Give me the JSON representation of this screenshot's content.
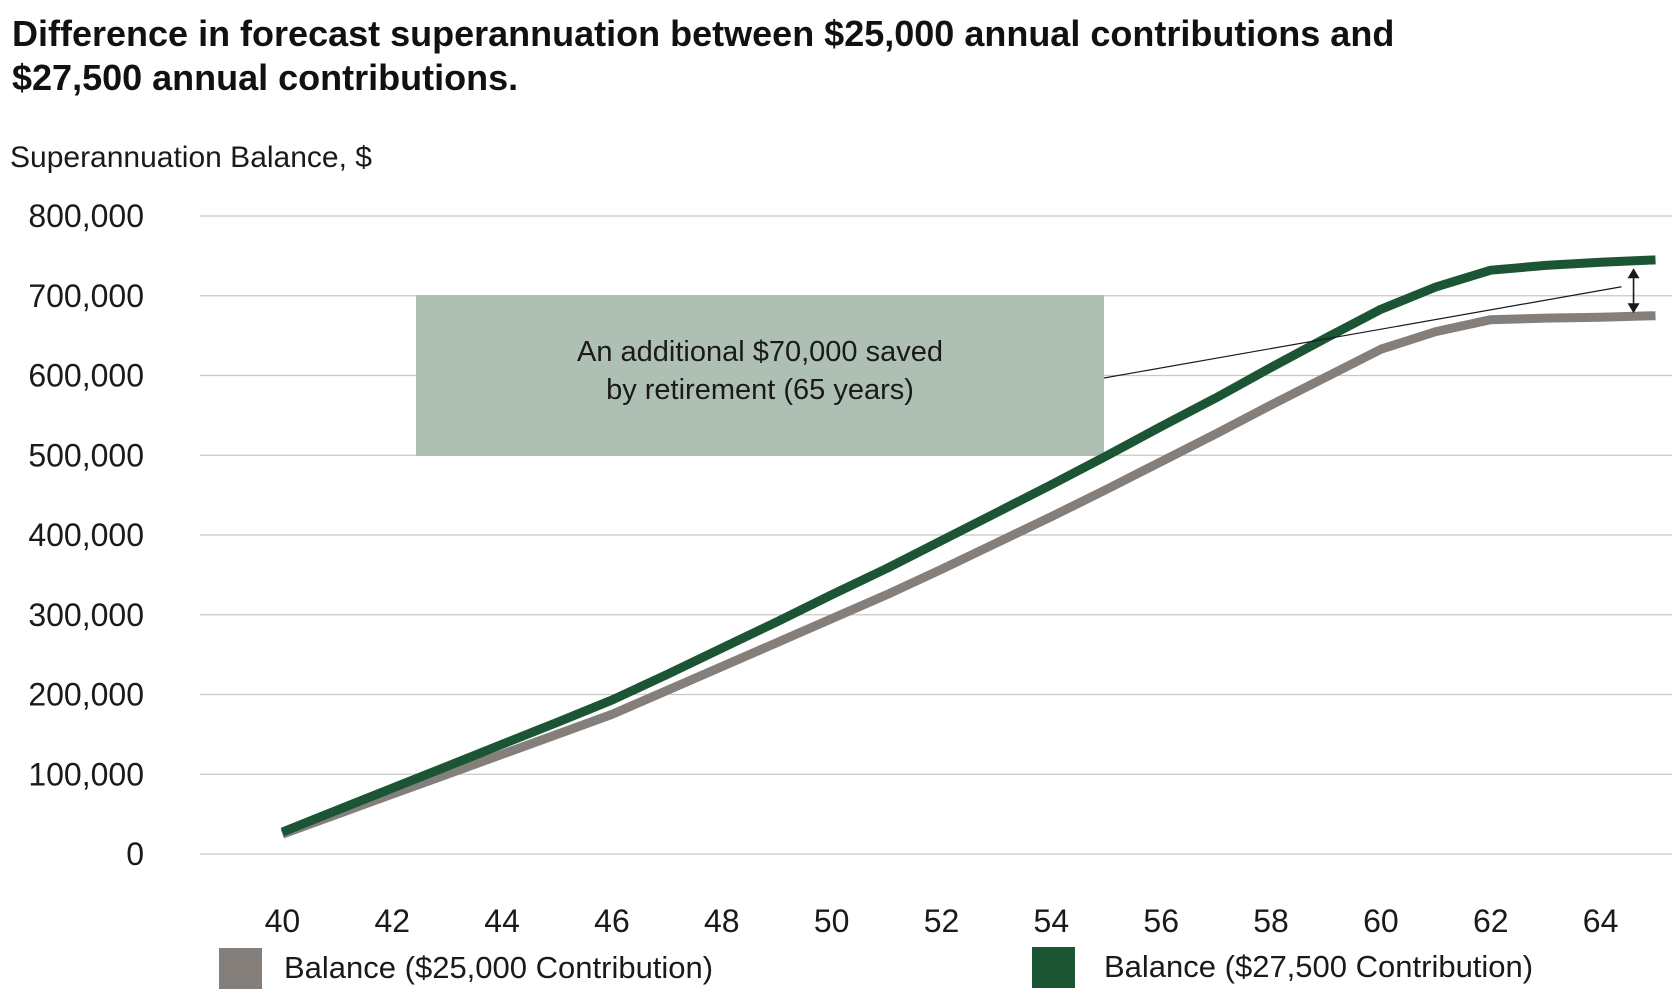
{
  "chart_data": {
    "type": "line",
    "title_lines": [
      "Difference in forecast superannuation between $25,000 annual contributions and",
      "$27,500 annual contributions."
    ],
    "ylabel": "Superannuation Balance, $",
    "xlabel": "",
    "ylim": [
      0,
      800000
    ],
    "y_ticks": [
      0,
      100000,
      200000,
      300000,
      400000,
      500000,
      600000,
      700000,
      800000
    ],
    "y_tick_labels": [
      "0",
      "100,000",
      "200,000",
      "300,000",
      "400,000",
      "500,000",
      "600,000",
      "700,000",
      "800,000"
    ],
    "xlim": [
      38.5,
      65.3
    ],
    "x_ticks": [
      40,
      42,
      44,
      46,
      48,
      50,
      52,
      54,
      56,
      58,
      60,
      62,
      64
    ],
    "x_tick_labels": [
      "40",
      "42",
      "44",
      "46",
      "48",
      "50",
      "52",
      "54",
      "56",
      "58",
      "60",
      "62",
      "64"
    ],
    "grid": "horizontal",
    "legend_position": "bottom",
    "series": [
      {
        "name": "Balance ($25,000 Contribution)",
        "color": "#857f7b",
        "x": [
          40,
          41,
          42,
          43,
          44,
          45,
          46,
          47,
          48,
          49,
          50,
          51,
          52,
          53,
          54,
          55,
          56,
          57,
          58,
          59,
          60,
          61,
          62,
          63,
          64,
          65
        ],
        "values": [
          25000,
          50000,
          75000,
          100000,
          125000,
          150000,
          175000,
          205000,
          235000,
          265000,
          295000,
          325000,
          357000,
          390000,
          423000,
          457000,
          492000,
          527000,
          563000,
          598000,
          633000,
          655000,
          670000,
          672000,
          673000,
          675000
        ]
      },
      {
        "name": "Balance ($27,500 Contribution)",
        "color": "#1b5534",
        "x": [
          40,
          41,
          42,
          43,
          44,
          45,
          46,
          47,
          48,
          49,
          50,
          51,
          52,
          53,
          54,
          55,
          56,
          57,
          58,
          59,
          60,
          61,
          62,
          63,
          64,
          65
        ],
        "values": [
          27500,
          55000,
          82500,
          110000,
          137500,
          165000,
          193000,
          225000,
          258000,
          291000,
          325000,
          358000,
          393000,
          428000,
          463000,
          499000,
          536000,
          572000,
          610000,
          647000,
          683000,
          711000,
          732000,
          738000,
          742000,
          745000
        ]
      }
    ],
    "annotation": {
      "lines": [
        "An additional $70,000 saved",
        "by retirement (65 years)"
      ],
      "box_color": "#aebfb3",
      "pointer_x": 64.6,
      "pointer_from": 673000,
      "pointer_to": 742000
    }
  }
}
